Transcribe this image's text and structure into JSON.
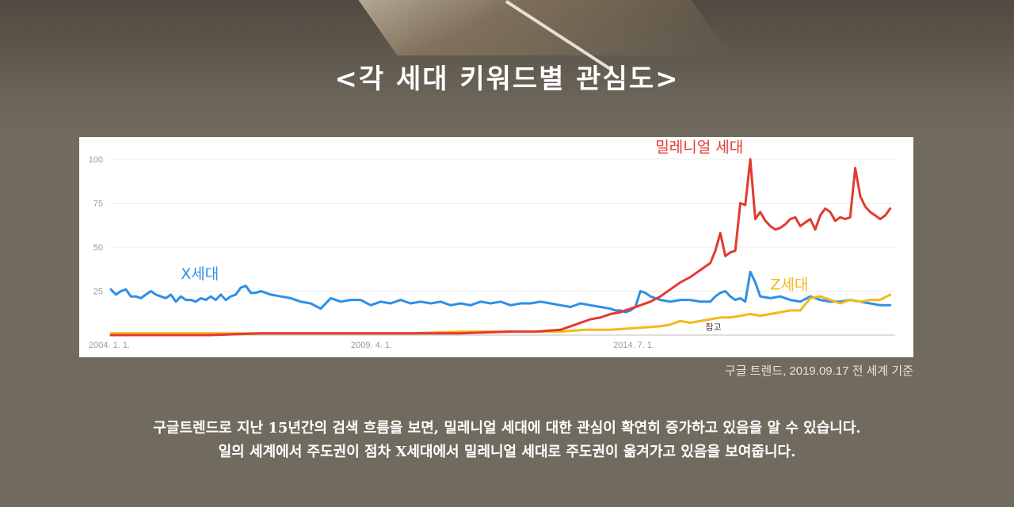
{
  "title": "<각 세대 키워드별 관심도>",
  "source": "구글 트렌드, 2019.09.17 전 세계 기준",
  "description": {
    "line1": "구글트렌드로 지난 15년간의 검색 흐름을 보면, 밀레니얼 세대에 대한 관심이 확연히 증가하고 있음을 알 수 있습니다.",
    "line2": "일의 세계에서 주도권이 점차 X세대에서 밀레니얼 세대로 주도권이 옮겨가고 있음을 보여줍니다."
  },
  "chart_data": {
    "type": "line",
    "title": "",
    "xlabel": "",
    "ylabel": "",
    "ylim": [
      0,
      100
    ],
    "yticks": [
      "100",
      "75",
      "50",
      "25"
    ],
    "xticks": [
      {
        "label": "2004. 1. 1.",
        "x": 2004.0
      },
      {
        "label": "2009. 4. 1.",
        "x": 2009.25
      },
      {
        "label": "2014. 7. 1.",
        "x": 2014.5
      }
    ],
    "xlim": [
      2004.0,
      2019.7
    ],
    "grid": true,
    "annotation": {
      "label": "참고",
      "x": 2015.9,
      "y": 3
    },
    "series": [
      {
        "name": "X세대",
        "label_pos": {
          "x": 2005.4,
          "y": 32
        },
        "color": "#2e8fe6",
        "x": [
          2004.0,
          2004.1,
          2004.2,
          2004.3,
          2004.4,
          2004.5,
          2004.6,
          2004.7,
          2004.8,
          2004.9,
          2005.0,
          2005.1,
          2005.2,
          2005.3,
          2005.4,
          2005.5,
          2005.6,
          2005.7,
          2005.8,
          2005.9,
          2006.0,
          2006.1,
          2006.2,
          2006.3,
          2006.4,
          2006.5,
          2006.6,
          2006.7,
          2006.8,
          2006.9,
          2007.0,
          2007.2,
          2007.4,
          2007.6,
          2007.8,
          2008.0,
          2008.2,
          2008.4,
          2008.6,
          2008.8,
          2009.0,
          2009.2,
          2009.4,
          2009.6,
          2009.8,
          2010.0,
          2010.2,
          2010.4,
          2010.6,
          2010.8,
          2011.0,
          2011.2,
          2011.4,
          2011.6,
          2011.8,
          2012.0,
          2012.2,
          2012.4,
          2012.6,
          2012.8,
          2013.0,
          2013.2,
          2013.4,
          2013.6,
          2013.8,
          2014.0,
          2014.1,
          2014.2,
          2014.3,
          2014.4,
          2014.5,
          2014.6,
          2014.7,
          2014.8,
          2014.9,
          2015.0,
          2015.2,
          2015.4,
          2015.6,
          2015.8,
          2016.0,
          2016.1,
          2016.2,
          2016.3,
          2016.4,
          2016.5,
          2016.6,
          2016.7,
          2016.8,
          2016.9,
          2017.0,
          2017.2,
          2017.4,
          2017.6,
          2017.8,
          2018.0,
          2018.2,
          2018.4,
          2018.6,
          2018.8,
          2019.0,
          2019.2,
          2019.4,
          2019.6
        ],
        "y": [
          26,
          23,
          25,
          26,
          22,
          22,
          21,
          23,
          25,
          23,
          22,
          21,
          23,
          19,
          22,
          20,
          20,
          19,
          21,
          20,
          22,
          20,
          23,
          20,
          22,
          23,
          27,
          28,
          24,
          24,
          25,
          23,
          22,
          21,
          19,
          18,
          15,
          21,
          19,
          20,
          20,
          17,
          19,
          18,
          20,
          18,
          19,
          18,
          19,
          17,
          18,
          17,
          19,
          18,
          19,
          17,
          18,
          18,
          19,
          18,
          17,
          16,
          18,
          17,
          16,
          15,
          14,
          14,
          13,
          14,
          16,
          25,
          24,
          22,
          21,
          20,
          19,
          20,
          20,
          19,
          19,
          22,
          24,
          25,
          22,
          20,
          21,
          19,
          36,
          30,
          22,
          21,
          22,
          20,
          19,
          22,
          20,
          19,
          19,
          20,
          19,
          18,
          17,
          17
        ]
      },
      {
        "name": "밀레니얼 세대",
        "label_pos": {
          "x": 2014.9,
          "y": 104
        },
        "color": "#e23b2f",
        "x": [
          2004.0,
          2005.0,
          2006.0,
          2007.0,
          2008.0,
          2009.0,
          2010.0,
          2011.0,
          2012.0,
          2012.5,
          2013.0,
          2013.2,
          2013.4,
          2013.6,
          2013.8,
          2014.0,
          2014.2,
          2014.4,
          2014.6,
          2014.8,
          2015.0,
          2015.2,
          2015.4,
          2015.6,
          2015.8,
          2016.0,
          2016.1,
          2016.2,
          2016.3,
          2016.4,
          2016.5,
          2016.6,
          2016.7,
          2016.8,
          2016.9,
          2017.0,
          2017.1,
          2017.2,
          2017.3,
          2017.4,
          2017.5,
          2017.6,
          2017.7,
          2017.8,
          2017.9,
          2018.0,
          2018.1,
          2018.2,
          2018.3,
          2018.4,
          2018.5,
          2018.6,
          2018.7,
          2018.8,
          2018.9,
          2019.0,
          2019.1,
          2019.2,
          2019.3,
          2019.4,
          2019.5,
          2019.6
        ],
        "y": [
          0,
          0,
          0,
          1,
          1,
          1,
          1,
          1,
          2,
          2,
          3,
          5,
          7,
          9,
          10,
          12,
          13,
          15,
          17,
          19,
          22,
          26,
          30,
          33,
          37,
          41,
          48,
          58,
          45,
          47,
          48,
          75,
          74,
          100,
          66,
          70,
          65,
          62,
          60,
          61,
          63,
          66,
          67,
          62,
          64,
          66,
          60,
          68,
          72,
          70,
          65,
          67,
          66,
          67,
          95,
          79,
          73,
          70,
          68,
          66,
          68,
          72
        ]
      },
      {
        "name": "Z세대",
        "label_pos": {
          "x": 2017.2,
          "y": 26
        },
        "color": "#f4b818",
        "x": [
          2004.0,
          2005.0,
          2006.0,
          2007.0,
          2008.0,
          2009.0,
          2010.0,
          2011.0,
          2012.0,
          2013.0,
          2013.5,
          2014.0,
          2014.5,
          2015.0,
          2015.2,
          2015.4,
          2015.6,
          2015.8,
          2016.0,
          2016.2,
          2016.4,
          2016.6,
          2016.8,
          2017.0,
          2017.2,
          2017.4,
          2017.6,
          2017.8,
          2018.0,
          2018.2,
          2018.4,
          2018.6,
          2018.8,
          2019.0,
          2019.2,
          2019.4,
          2019.6
        ],
        "y": [
          1,
          1,
          1,
          1,
          1,
          1,
          1,
          2,
          2,
          2,
          3,
          3,
          4,
          5,
          6,
          8,
          7,
          8,
          9,
          10,
          10,
          11,
          12,
          11,
          12,
          13,
          14,
          14,
          21,
          22,
          20,
          18,
          20,
          19,
          20,
          20,
          23
        ]
      }
    ]
  }
}
